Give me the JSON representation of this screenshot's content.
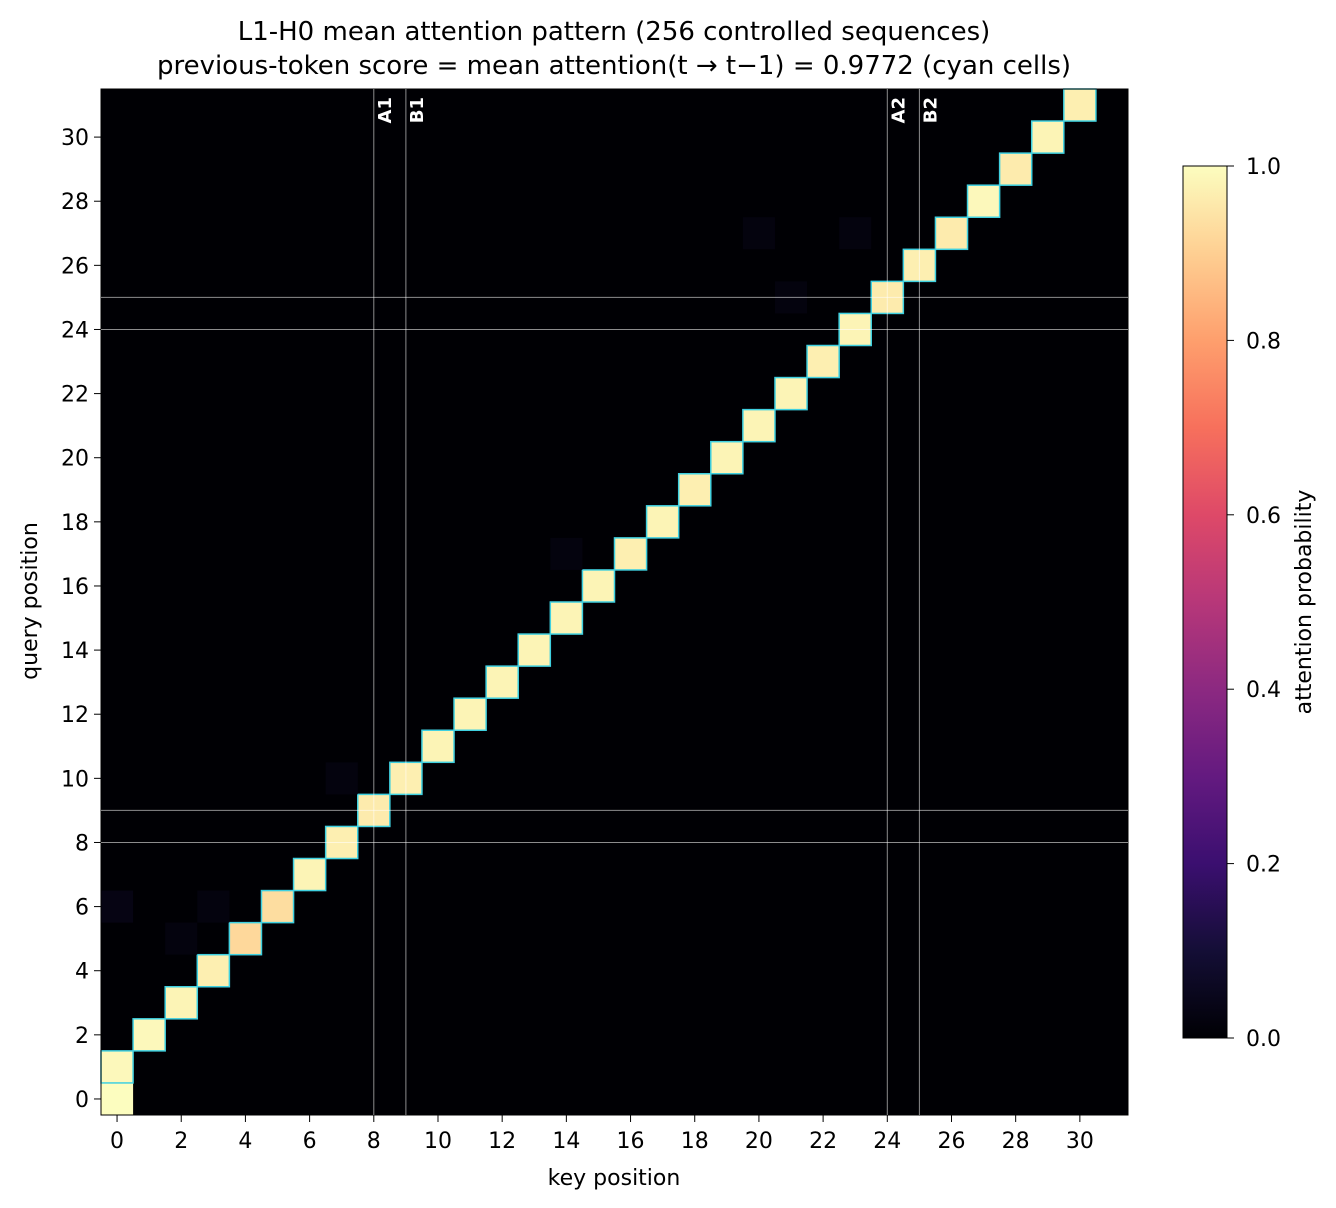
{
  "chart_data": {
    "type": "heatmap",
    "title": "L1-H0 mean attention pattern (256 controlled sequences)",
    "subtitle": "previous-token score = mean attention(t → t−1) = 0.9772 (cyan cells)",
    "xlabel": "key position",
    "ylabel": "query position",
    "colorbar_label": "attention probability",
    "colormap": "magma",
    "x_range": [
      -0.5,
      31.5
    ],
    "y_range": [
      -0.5,
      31.5
    ],
    "x_ticks": [
      0,
      2,
      4,
      6,
      8,
      10,
      12,
      14,
      16,
      18,
      20,
      22,
      24,
      26,
      28,
      30
    ],
    "y_ticks": [
      0,
      2,
      4,
      6,
      8,
      10,
      12,
      14,
      16,
      18,
      20,
      22,
      24,
      26,
      28,
      30
    ],
    "colorbar_range": [
      0.0,
      1.0
    ],
    "colorbar_ticks": [
      "0.0",
      "0.2",
      "0.4",
      "0.6",
      "0.8",
      "1.0"
    ],
    "highlight_color": "#3fd0e0",
    "grid": false,
    "markers": [
      {
        "label": "A1",
        "position": 8
      },
      {
        "label": "B1",
        "position": 9
      },
      {
        "label": "A2",
        "position": 24
      },
      {
        "label": "B2",
        "position": 25
      }
    ],
    "cells": [
      {
        "query": 0,
        "key": 0,
        "value": 1.0,
        "prev_token": false
      },
      {
        "query": 1,
        "key": 0,
        "value": 0.99,
        "prev_token": true
      },
      {
        "query": 2,
        "key": 1,
        "value": 0.99,
        "prev_token": true
      },
      {
        "query": 3,
        "key": 2,
        "value": 0.98,
        "prev_token": true
      },
      {
        "query": 4,
        "key": 3,
        "value": 0.97,
        "prev_token": true
      },
      {
        "query": 5,
        "key": 4,
        "value": 0.92,
        "prev_token": true
      },
      {
        "query": 6,
        "key": 5,
        "value": 0.93,
        "prev_token": true
      },
      {
        "query": 7,
        "key": 6,
        "value": 0.98,
        "prev_token": true
      },
      {
        "query": 8,
        "key": 7,
        "value": 0.97,
        "prev_token": true
      },
      {
        "query": 9,
        "key": 8,
        "value": 0.96,
        "prev_token": true
      },
      {
        "query": 10,
        "key": 9,
        "value": 0.97,
        "prev_token": true
      },
      {
        "query": 11,
        "key": 10,
        "value": 0.98,
        "prev_token": true
      },
      {
        "query": 12,
        "key": 11,
        "value": 0.98,
        "prev_token": true
      },
      {
        "query": 13,
        "key": 12,
        "value": 0.98,
        "prev_token": true
      },
      {
        "query": 14,
        "key": 13,
        "value": 0.98,
        "prev_token": true
      },
      {
        "query": 15,
        "key": 14,
        "value": 0.98,
        "prev_token": true
      },
      {
        "query": 16,
        "key": 15,
        "value": 0.98,
        "prev_token": true
      },
      {
        "query": 17,
        "key": 16,
        "value": 0.97,
        "prev_token": true
      },
      {
        "query": 18,
        "key": 17,
        "value": 0.98,
        "prev_token": true
      },
      {
        "query": 19,
        "key": 18,
        "value": 0.97,
        "prev_token": true
      },
      {
        "query": 20,
        "key": 19,
        "value": 0.98,
        "prev_token": true
      },
      {
        "query": 21,
        "key": 20,
        "value": 0.98,
        "prev_token": true
      },
      {
        "query": 22,
        "key": 21,
        "value": 0.98,
        "prev_token": true
      },
      {
        "query": 23,
        "key": 22,
        "value": 0.97,
        "prev_token": true
      },
      {
        "query": 24,
        "key": 23,
        "value": 0.98,
        "prev_token": true
      },
      {
        "query": 25,
        "key": 24,
        "value": 0.96,
        "prev_token": true
      },
      {
        "query": 26,
        "key": 25,
        "value": 0.97,
        "prev_token": true
      },
      {
        "query": 27,
        "key": 26,
        "value": 0.96,
        "prev_token": true
      },
      {
        "query": 28,
        "key": 27,
        "value": 0.99,
        "prev_token": true
      },
      {
        "query": 29,
        "key": 28,
        "value": 0.96,
        "prev_token": true
      },
      {
        "query": 30,
        "key": 29,
        "value": 0.98,
        "prev_token": true
      },
      {
        "query": 31,
        "key": 30,
        "value": 0.97,
        "prev_token": true
      },
      {
        "query": 6,
        "key": 0,
        "value": 0.03,
        "prev_token": false
      },
      {
        "query": 5,
        "key": 2,
        "value": 0.02,
        "prev_token": false
      },
      {
        "query": 6,
        "key": 3,
        "value": 0.02,
        "prev_token": false
      },
      {
        "query": 10,
        "key": 7,
        "value": 0.02,
        "prev_token": false
      },
      {
        "query": 17,
        "key": 14,
        "value": 0.02,
        "prev_token": false
      },
      {
        "query": 27,
        "key": 20,
        "value": 0.02,
        "prev_token": false
      },
      {
        "query": 25,
        "key": 21,
        "value": 0.02,
        "prev_token": false
      },
      {
        "query": 27,
        "key": 23,
        "value": 0.02,
        "prev_token": false
      }
    ]
  }
}
